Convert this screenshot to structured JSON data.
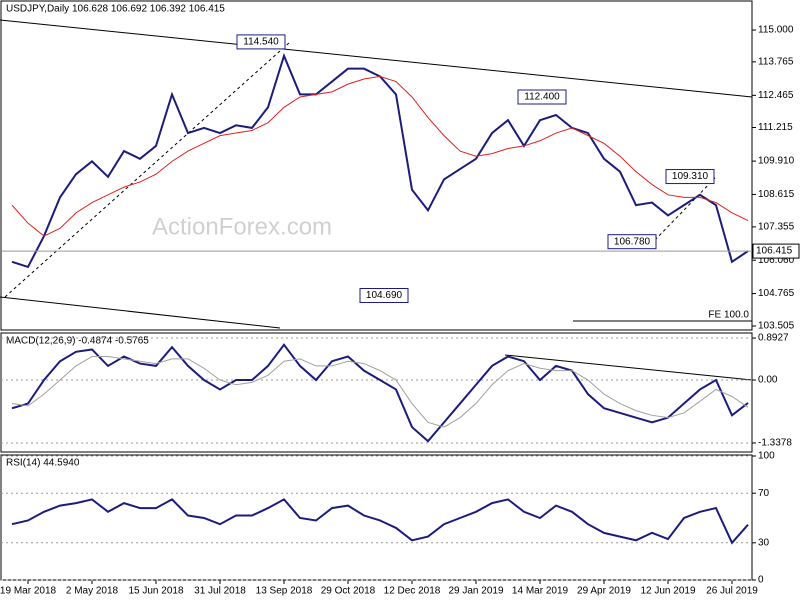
{
  "chart_data": [
    {
      "type": "line",
      "title": "USDJPY,Daily  106.628 106.692 106.392 106.415",
      "watermark": "ActionForex.com",
      "categories": [
        null,
        "19 Mar 2018",
        null,
        null,
        null,
        "2 May 2018",
        null,
        null,
        null,
        "15 Jun 2018",
        null,
        null,
        null,
        "31 Jul 2018",
        null,
        null,
        null,
        "13 Sep 2018",
        null,
        null,
        null,
        "29 Oct 2018",
        null,
        null,
        null,
        "12 Dec 2018",
        null,
        null,
        null,
        "29 Jan 2019",
        null,
        null,
        null,
        "14 Mar 2019",
        null,
        null,
        null,
        "29 Apr 2019",
        null,
        null,
        null,
        "12 Jun 2019",
        null,
        null,
        null,
        "26 Jul 2019",
        null
      ],
      "series": [
        {
          "color": "#1c1c7a",
          "values": [
            106.0,
            105.8,
            107.0,
            108.5,
            109.4,
            109.9,
            109.3,
            110.3,
            110.0,
            110.5,
            112.5,
            111.0,
            111.2,
            111.0,
            111.3,
            111.2,
            112.0,
            114.0,
            112.5,
            112.5,
            113.0,
            113.5,
            113.5,
            113.2,
            112.5,
            108.8,
            108.0,
            109.2,
            109.6,
            110.0,
            111.0,
            111.5,
            110.5,
            111.5,
            111.7,
            111.2,
            111.0,
            110.0,
            109.5,
            108.2,
            108.3,
            107.8,
            108.2,
            108.6,
            108.2,
            106.0,
            106.415
          ]
        },
        {
          "color": "#e02020",
          "values": [
            108.2,
            107.5,
            107.0,
            107.3,
            107.9,
            108.3,
            108.6,
            108.9,
            109.1,
            109.4,
            109.9,
            110.3,
            110.6,
            110.9,
            111.0,
            111.1,
            111.4,
            112.0,
            112.4,
            112.5,
            112.6,
            112.9,
            113.1,
            113.2,
            113.0,
            112.4,
            111.6,
            110.9,
            110.3,
            110.1,
            110.2,
            110.4,
            110.5,
            110.7,
            111.0,
            111.2,
            110.9,
            110.6,
            110.1,
            109.5,
            109.0,
            108.6,
            108.5,
            108.5,
            108.3,
            107.9,
            107.6
          ]
        }
      ],
      "ylim": [
        103.35,
        116.09
      ],
      "yticks": [
        {
          "value": 115.0,
          "label": "115.000"
        },
        {
          "value": 113.765,
          "label": "113.765"
        },
        {
          "value": 112.465,
          "label": "112.465"
        },
        {
          "value": 111.215,
          "label": "111.215"
        },
        {
          "value": 109.91,
          "label": "109.910"
        },
        {
          "value": 108.615,
          "label": "108.615"
        },
        {
          "value": 107.355,
          "label": "107.355"
        },
        {
          "value": 106.06,
          "label": "106.060"
        },
        {
          "value": 104.765,
          "label": "104.765"
        },
        {
          "value": 103.505,
          "label": "103.505"
        }
      ],
      "last_price": {
        "value": 106.415,
        "label": "106.415"
      },
      "annotations": [
        {
          "value": 114.54,
          "label": "114.540"
        },
        {
          "value": 112.4,
          "label": "112.400"
        },
        {
          "value": 109.31,
          "label": "109.310"
        },
        {
          "value": 106.78,
          "label": "106.780"
        },
        {
          "value": 104.69,
          "label": "104.690"
        }
      ],
      "fe_label": "FE 100.0",
      "grid": false
    },
    {
      "type": "line",
      "title": "MACD(12,26,9) -0.4874 -0.5765",
      "series": [
        {
          "color": "#1c1c80",
          "values": [
            -0.6,
            -0.5,
            0.0,
            0.4,
            0.6,
            0.65,
            0.3,
            0.5,
            0.35,
            0.3,
            0.7,
            0.3,
            0.0,
            -0.2,
            0.0,
            0.0,
            0.3,
            0.75,
            0.3,
            0.0,
            0.4,
            0.5,
            0.2,
            0.0,
            -0.2,
            -1.0,
            -1.3,
            -0.9,
            -0.5,
            -0.1,
            0.3,
            0.5,
            0.4,
            0.0,
            0.3,
            0.2,
            -0.3,
            -0.6,
            -0.7,
            -0.8,
            -0.9,
            -0.8,
            -0.5,
            -0.2,
            0.0,
            -0.75,
            -0.4874
          ]
        },
        {
          "color": "#a0a0a0",
          "values": [
            -0.5,
            -0.55,
            -0.3,
            0.0,
            0.3,
            0.5,
            0.5,
            0.45,
            0.4,
            0.35,
            0.45,
            0.45,
            0.25,
            0.0,
            -0.1,
            -0.05,
            0.1,
            0.4,
            0.45,
            0.3,
            0.3,
            0.4,
            0.35,
            0.2,
            0.0,
            -0.5,
            -0.9,
            -1.0,
            -0.8,
            -0.5,
            -0.1,
            0.2,
            0.35,
            0.25,
            0.2,
            0.2,
            0.0,
            -0.3,
            -0.5,
            -0.65,
            -0.75,
            -0.8,
            -0.7,
            -0.45,
            -0.2,
            -0.35,
            -0.5765
          ]
        }
      ],
      "ylim": [
        -1.53,
        1.0
      ],
      "yticks": [
        0.8927,
        {
          "value": 0,
          "label": "0.00"
        },
        -1.3378
      ],
      "grid": true
    },
    {
      "type": "line",
      "title": "RSI(14) 44.5940",
      "series": [
        {
          "color": "#1c1c80",
          "values": [
            45,
            48,
            55,
            60,
            62,
            65,
            55,
            62,
            58,
            58,
            65,
            52,
            50,
            45,
            52,
            52,
            58,
            65,
            50,
            48,
            58,
            60,
            52,
            48,
            42,
            32,
            35,
            45,
            50,
            55,
            62,
            65,
            55,
            50,
            60,
            55,
            45,
            38,
            35,
            32,
            38,
            33,
            50,
            55,
            58,
            30,
            44.594
          ]
        }
      ],
      "ylim": [
        0,
        100
      ],
      "yticks": [
        100,
        70,
        30,
        0
      ],
      "grid": true
    }
  ]
}
